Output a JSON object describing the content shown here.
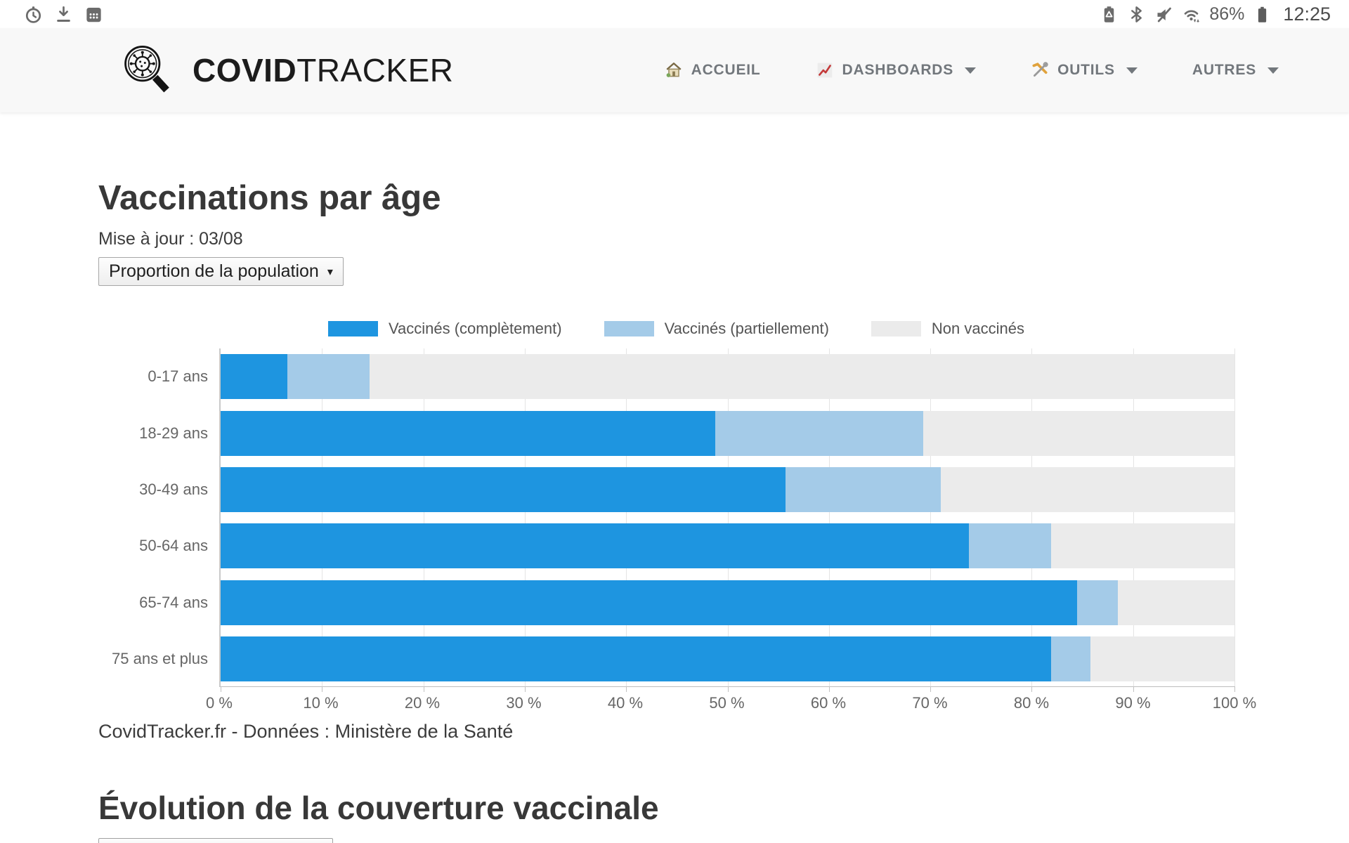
{
  "status_bar": {
    "battery_percent": "86%",
    "time": "12:25",
    "left_icons": [
      "alarm-icon",
      "download-icon",
      "calendar-icon"
    ],
    "right_icons": [
      "battery-saver-icon",
      "bluetooth-icon",
      "mute-icon",
      "wifi-icon",
      "battery-icon"
    ]
  },
  "navbar": {
    "brand_bold": "COVID",
    "brand_regular": "TRACKER",
    "items": [
      {
        "label": "ACCUEIL",
        "icon": "house-icon",
        "has_dropdown": false
      },
      {
        "label": "DASHBOARDS",
        "icon": "chart-increasing-icon",
        "has_dropdown": true
      },
      {
        "label": "OUTILS",
        "icon": "tools-icon",
        "has_dropdown": true
      },
      {
        "label": "AUTRES",
        "icon": null,
        "has_dropdown": true
      }
    ]
  },
  "main": {
    "title": "Vaccinations par âge",
    "updated": "Mise à jour : 03/08",
    "metric_select": "Proportion de la population",
    "select_caret": "▾",
    "source": "CovidTracker.fr - Données : Ministère de la Santé",
    "section2_title": "Évolution de la couverture vaccinale"
  },
  "chart_data": {
    "type": "bar",
    "orientation": "horizontal",
    "stacked": true,
    "title": "Vaccinations par âge - Proportion de la population",
    "categories": [
      "0-17 ans",
      "18-29 ans",
      "30-49 ans",
      "50-64 ans",
      "65-74 ans",
      "75 ans et plus"
    ],
    "series": [
      {
        "name": "Vaccinés (complètement)",
        "color": "#1e95e0",
        "values": [
          6.6,
          48.8,
          55.7,
          73.8,
          84.5,
          81.9
        ]
      },
      {
        "name": "Vaccinés (partiellement)",
        "color": "#a4cbe8",
        "values": [
          8.1,
          20.5,
          15.3,
          8.1,
          4.0,
          3.9
        ]
      },
      {
        "name": "Non vaccinés",
        "color": "#ebebeb",
        "values": [
          85.3,
          30.7,
          29.0,
          18.1,
          11.5,
          14.2
        ]
      }
    ],
    "x_ticks": [
      "0 %",
      "10 %",
      "20 %",
      "30 %",
      "40 %",
      "50 %",
      "60 %",
      "70 %",
      "80 %",
      "90 %",
      "100 %"
    ],
    "xlim": [
      0,
      100
    ],
    "xlabel": "",
    "ylabel": "",
    "legend_position": "top",
    "grid": true
  }
}
